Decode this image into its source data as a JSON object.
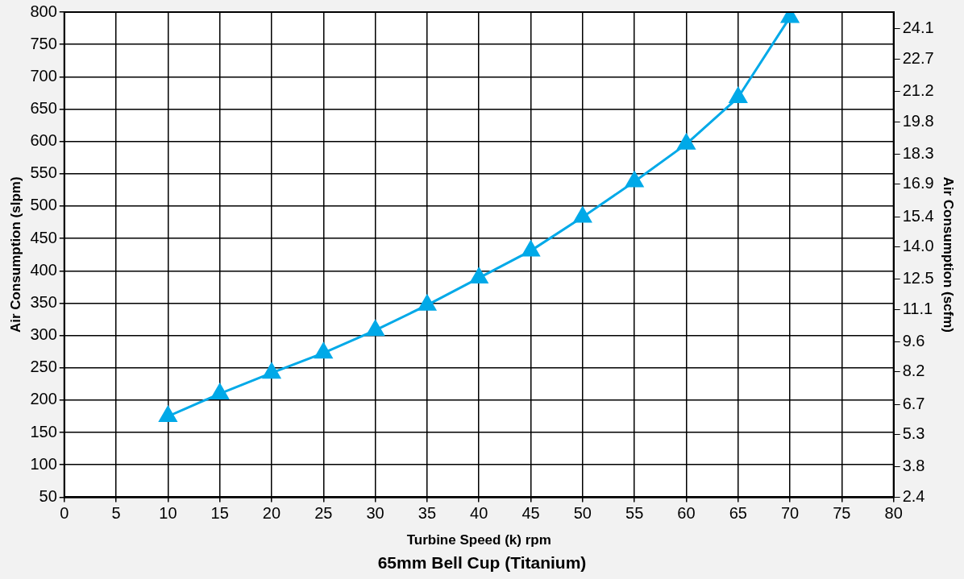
{
  "chart_data": {
    "type": "line",
    "title": "65mm Bell Cup (Titanium)",
    "xlabel": "Turbine Speed (k) rpm",
    "ylabel": "Air Consumption (slpm)",
    "y2label": "Air Consumption (scfm)",
    "x": [
      10,
      15,
      20,
      25,
      30,
      35,
      40,
      45,
      50,
      55,
      60,
      65,
      70
    ],
    "series": [
      {
        "color": "#00a9e8",
        "values": [
          175,
          210,
          242,
          273,
          308,
          347,
          389,
          431,
          483,
          538,
          596,
          668,
          792
        ]
      }
    ],
    "xlim": [
      0,
      80
    ],
    "xticks": [
      0,
      5,
      10,
      15,
      20,
      25,
      30,
      35,
      40,
      45,
      50,
      55,
      60,
      65,
      70,
      75,
      80
    ],
    "ylim": [
      50,
      800
    ],
    "yticks": [
      50,
      100,
      150,
      200,
      250,
      300,
      350,
      400,
      450,
      500,
      550,
      600,
      650,
      700,
      750,
      800
    ],
    "y2lim": [
      2.4,
      24.88
    ],
    "y2ticks": [
      2.4,
      3.8,
      5.3,
      6.7,
      8.2,
      9.6,
      11.1,
      12.5,
      {
        "value": 14,
        "label": "14.0"
      },
      15.4,
      16.9,
      18.3,
      19.8,
      21.2,
      22.7,
      24.1
    ],
    "grid": true,
    "marker": "triangle",
    "line_style": "solid"
  }
}
